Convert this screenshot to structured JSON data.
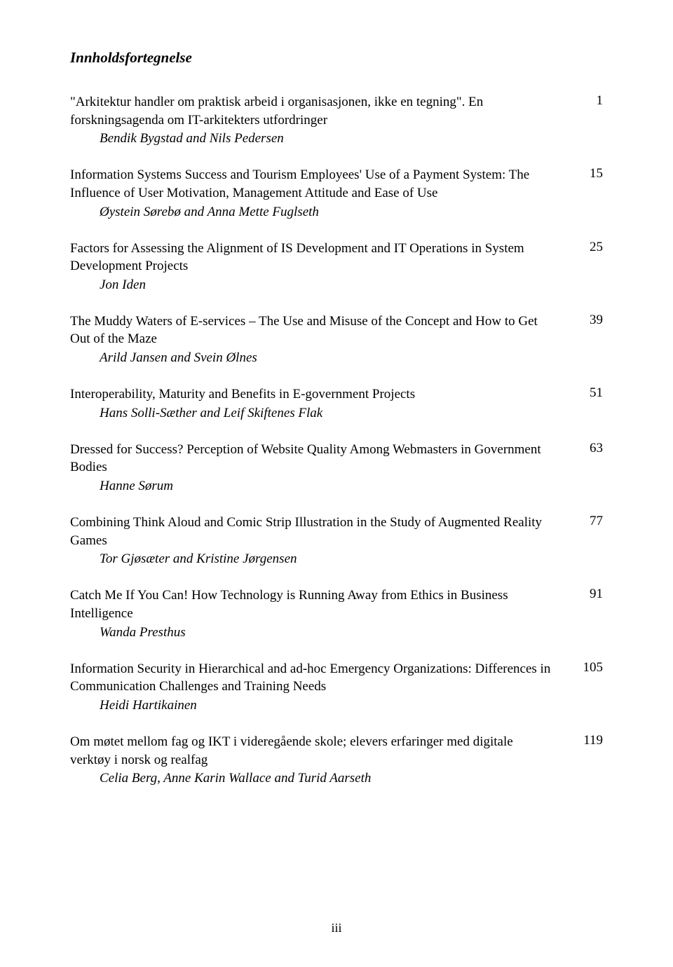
{
  "header": "Innholdsfortegnelse",
  "entries": [
    {
      "title": "\"Arkitektur handler om praktisk arbeid i organisasjonen, ikke en tegning\". En forskningsagenda om IT-arkitekters utfordringer",
      "author": "Bendik Bygstad and Nils Pedersen",
      "page": "1"
    },
    {
      "title": "Information Systems Success and Tourism Employees' Use of a Payment System: The Influence of User Motivation, Management Attitude and Ease of Use",
      "author": "Øystein Sørebø and Anna Mette Fuglseth",
      "page": "15"
    },
    {
      "title": "Factors for Assessing the Alignment of IS Development and IT Operations in System Development Projects",
      "author": "Jon Iden",
      "page": "25"
    },
    {
      "title": "The Muddy Waters of E-services – The Use and Misuse of the Concept and How to Get Out of the Maze",
      "author": "Arild Jansen and Svein Ølnes",
      "page": "39"
    },
    {
      "title": "Interoperability, Maturity and Benefits in E-government Projects",
      "author": "Hans Solli-Sæther and Leif Skiftenes Flak",
      "page": "51"
    },
    {
      "title": "Dressed for Success? Perception of Website Quality Among Webmasters in Government Bodies",
      "author": "Hanne Sørum",
      "page": "63"
    },
    {
      "title": "Combining Think Aloud and Comic Strip Illustration in the Study of Augmented Reality Games",
      "author": "Tor Gjøsæter and Kristine Jørgensen",
      "page": "77"
    },
    {
      "title": "Catch Me If You Can! How Technology is Running Away from Ethics in Business Intelligence",
      "author": "Wanda Presthus",
      "page": "91"
    },
    {
      "title": "Information Security in Hierarchical and ad-hoc Emergency Organizations: Differences in Communication Challenges and Training Needs",
      "author": "Heidi Hartikainen",
      "page": "105"
    },
    {
      "title": "Om møtet mellom fag og IKT i videregående skole; elevers erfaringer med digitale verktøy i norsk og realfag",
      "author": "Celia Berg, Anne Karin Wallace and Turid Aarseth",
      "page": "119"
    }
  ],
  "footer": "iii"
}
